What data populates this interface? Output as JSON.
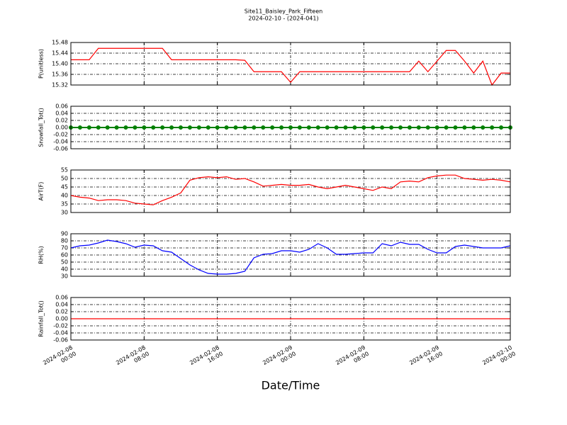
{
  "chart_data": [
    {
      "type": "line",
      "title": "Site11_Baisley_Park_Fifteen",
      "subtitle": "2024-02-10 - (2024-041)",
      "ylabel": "P(unitless)",
      "x": [
        "2024-02-08 00:00",
        "2024-02-08 01:00",
        "2024-02-08 02:00",
        "2024-02-08 03:00",
        "2024-02-08 04:00",
        "2024-02-08 05:00",
        "2024-02-08 06:00",
        "2024-02-08 07:00",
        "2024-02-08 08:00",
        "2024-02-08 09:00",
        "2024-02-08 10:00",
        "2024-02-08 11:00",
        "2024-02-08 12:00",
        "2024-02-08 13:00",
        "2024-02-08 14:00",
        "2024-02-08 15:00",
        "2024-02-08 16:00",
        "2024-02-08 17:00",
        "2024-02-08 18:00",
        "2024-02-08 19:00",
        "2024-02-08 20:00",
        "2024-02-08 21:00",
        "2024-02-08 22:00",
        "2024-02-08 23:00",
        "2024-02-09 00:00",
        "2024-02-09 01:00",
        "2024-02-09 02:00",
        "2024-02-09 03:00",
        "2024-02-09 04:00",
        "2024-02-09 05:00",
        "2024-02-09 06:00",
        "2024-02-09 07:00",
        "2024-02-09 08:00",
        "2024-02-09 09:00",
        "2024-02-09 10:00",
        "2024-02-09 11:00",
        "2024-02-09 12:00",
        "2024-02-09 13:00",
        "2024-02-09 14:00",
        "2024-02-09 15:00",
        "2024-02-09 16:00",
        "2024-02-09 17:00",
        "2024-02-09 18:00",
        "2024-02-09 19:00",
        "2024-02-09 20:00",
        "2024-02-09 21:00",
        "2024-02-09 22:00",
        "2024-02-09 23:00",
        "2024-02-10 00:00"
      ],
      "series": [
        {
          "color": "#ff0000",
          "values": [
            15.415,
            15.415,
            15.415,
            15.458,
            15.458,
            15.458,
            15.458,
            15.458,
            15.458,
            15.458,
            15.458,
            15.415,
            15.415,
            15.415,
            15.415,
            15.415,
            15.415,
            15.415,
            15.415,
            15.413,
            15.37,
            15.37,
            15.37,
            15.37,
            15.33,
            15.37,
            15.37,
            15.37,
            15.37,
            15.37,
            15.37,
            15.37,
            15.37,
            15.37,
            15.37,
            15.37,
            15.37,
            15.37,
            15.41,
            15.37,
            15.41,
            15.45,
            15.45,
            15.41,
            15.365,
            15.41,
            15.32,
            15.365,
            15.365
          ]
        }
      ],
      "xlim": [
        "2024-02-08 00:00",
        "2024-02-10 00:00"
      ],
      "ylim": [
        15.32,
        15.48
      ],
      "yticks": [
        15.32,
        15.36,
        {
          "value": 15.4,
          "label": "15.40"
        },
        15.44,
        15.48
      ],
      "grid": true
    },
    {
      "type": "line",
      "ylabel": "Snowfall_Tot()",
      "marker": true,
      "x": [
        "2024-02-08 00:00",
        "2024-02-08 01:00",
        "2024-02-08 02:00",
        "2024-02-08 03:00",
        "2024-02-08 04:00",
        "2024-02-08 05:00",
        "2024-02-08 06:00",
        "2024-02-08 07:00",
        "2024-02-08 08:00",
        "2024-02-08 09:00",
        "2024-02-08 10:00",
        "2024-02-08 11:00",
        "2024-02-08 12:00",
        "2024-02-08 13:00",
        "2024-02-08 14:00",
        "2024-02-08 15:00",
        "2024-02-08 16:00",
        "2024-02-08 17:00",
        "2024-02-08 18:00",
        "2024-02-08 19:00",
        "2024-02-08 20:00",
        "2024-02-08 21:00",
        "2024-02-08 22:00",
        "2024-02-08 23:00",
        "2024-02-09 00:00",
        "2024-02-09 01:00",
        "2024-02-09 02:00",
        "2024-02-09 03:00",
        "2024-02-09 04:00",
        "2024-02-09 05:00",
        "2024-02-09 06:00",
        "2024-02-09 07:00",
        "2024-02-09 08:00",
        "2024-02-09 09:00",
        "2024-02-09 10:00",
        "2024-02-09 11:00",
        "2024-02-09 12:00",
        "2024-02-09 13:00",
        "2024-02-09 14:00",
        "2024-02-09 15:00",
        "2024-02-09 16:00",
        "2024-02-09 17:00",
        "2024-02-09 18:00",
        "2024-02-09 19:00",
        "2024-02-09 20:00",
        "2024-02-09 21:00",
        "2024-02-09 22:00",
        "2024-02-09 23:00",
        "2024-02-10 00:00"
      ],
      "series": [
        {
          "color": "#008000",
          "values": [
            0,
            0,
            0,
            0,
            0,
            0,
            0,
            0,
            0,
            0,
            0,
            0,
            0,
            0,
            0,
            0,
            0,
            0,
            0,
            0,
            0,
            0,
            0,
            0,
            0,
            0,
            0,
            0,
            0,
            0,
            0,
            0,
            0,
            0,
            0,
            0,
            0,
            0,
            0,
            0,
            0,
            0,
            0,
            0,
            0,
            0,
            0,
            0,
            0
          ]
        }
      ],
      "xlim": [
        "2024-02-08 00:00",
        "2024-02-10 00:00"
      ],
      "ylim": [
        -0.06,
        0.06
      ],
      "yticks": [
        -0.06,
        -0.04,
        -0.02,
        {
          "value": 0,
          "label": "0.00"
        },
        0.02,
        0.04,
        0.06
      ],
      "grid": true
    },
    {
      "type": "line",
      "ylabel": "AirT(F)",
      "x": [
        "2024-02-08 00:00",
        "2024-02-08 01:00",
        "2024-02-08 02:00",
        "2024-02-08 03:00",
        "2024-02-08 04:00",
        "2024-02-08 05:00",
        "2024-02-08 06:00",
        "2024-02-08 07:00",
        "2024-02-08 08:00",
        "2024-02-08 09:00",
        "2024-02-08 10:00",
        "2024-02-08 11:00",
        "2024-02-08 12:00",
        "2024-02-08 13:00",
        "2024-02-08 14:00",
        "2024-02-08 15:00",
        "2024-02-08 16:00",
        "2024-02-08 17:00",
        "2024-02-08 18:00",
        "2024-02-08 19:00",
        "2024-02-08 20:00",
        "2024-02-08 21:00",
        "2024-02-08 22:00",
        "2024-02-08 23:00",
        "2024-02-09 00:00",
        "2024-02-09 01:00",
        "2024-02-09 02:00",
        "2024-02-09 03:00",
        "2024-02-09 04:00",
        "2024-02-09 05:00",
        "2024-02-09 06:00",
        "2024-02-09 07:00",
        "2024-02-09 08:00",
        "2024-02-09 09:00",
        "2024-02-09 10:00",
        "2024-02-09 11:00",
        "2024-02-09 12:00",
        "2024-02-09 13:00",
        "2024-02-09 14:00",
        "2024-02-09 15:00",
        "2024-02-09 16:00",
        "2024-02-09 17:00",
        "2024-02-09 18:00",
        "2024-02-09 19:00",
        "2024-02-09 20:00",
        "2024-02-09 21:00",
        "2024-02-09 22:00",
        "2024-02-09 23:00",
        "2024-02-10 00:00"
      ],
      "series": [
        {
          "color": "#ff0000",
          "values": [
            40,
            39,
            38.5,
            37,
            37.5,
            37.5,
            37,
            35.5,
            35,
            34.5,
            37,
            39,
            41.5,
            49,
            50.5,
            51,
            50.5,
            51,
            49.5,
            50,
            48,
            45.5,
            46,
            46.5,
            46,
            46,
            46.5,
            45,
            44,
            45,
            46,
            45,
            44,
            43,
            45,
            44,
            48,
            48.5,
            48,
            50.5,
            51.5,
            52,
            52,
            50,
            49.5,
            49,
            49.5,
            49,
            48
          ]
        }
      ],
      "xlim": [
        "2024-02-08 00:00",
        "2024-02-10 00:00"
      ],
      "ylim": [
        30,
        55
      ],
      "yticks": [
        30,
        35,
        40,
        45,
        50,
        55
      ],
      "grid": true
    },
    {
      "type": "line",
      "ylabel": "RH(%)",
      "x": [
        "2024-02-08 00:00",
        "2024-02-08 01:00",
        "2024-02-08 02:00",
        "2024-02-08 03:00",
        "2024-02-08 04:00",
        "2024-02-08 05:00",
        "2024-02-08 06:00",
        "2024-02-08 07:00",
        "2024-02-08 08:00",
        "2024-02-08 09:00",
        "2024-02-08 10:00",
        "2024-02-08 11:00",
        "2024-02-08 12:00",
        "2024-02-08 13:00",
        "2024-02-08 14:00",
        "2024-02-08 15:00",
        "2024-02-08 16:00",
        "2024-02-08 17:00",
        "2024-02-08 18:00",
        "2024-02-08 19:00",
        "2024-02-08 20:00",
        "2024-02-08 21:00",
        "2024-02-08 22:00",
        "2024-02-08 23:00",
        "2024-02-09 00:00",
        "2024-02-09 01:00",
        "2024-02-09 02:00",
        "2024-02-09 03:00",
        "2024-02-09 04:00",
        "2024-02-09 05:00",
        "2024-02-09 06:00",
        "2024-02-09 07:00",
        "2024-02-09 08:00",
        "2024-02-09 09:00",
        "2024-02-09 10:00",
        "2024-02-09 11:00",
        "2024-02-09 12:00",
        "2024-02-09 13:00",
        "2024-02-09 14:00",
        "2024-02-09 15:00",
        "2024-02-09 16:00",
        "2024-02-09 17:00",
        "2024-02-09 18:00",
        "2024-02-09 19:00",
        "2024-02-09 20:00",
        "2024-02-09 21:00",
        "2024-02-09 22:00",
        "2024-02-09 23:00",
        "2024-02-10 00:00"
      ],
      "series": [
        {
          "color": "#0000ff",
          "values": [
            70,
            73,
            74,
            77,
            81,
            79,
            76,
            71,
            74,
            73,
            66,
            64,
            55,
            46,
            39,
            34,
            33,
            33,
            34,
            37,
            56,
            61,
            62,
            66,
            66,
            64,
            68,
            76,
            70,
            61,
            61,
            62,
            63,
            63,
            76,
            73,
            78,
            75,
            75,
            68,
            63,
            63,
            72,
            74,
            72,
            70,
            70,
            70,
            73
          ]
        }
      ],
      "xlim": [
        "2024-02-08 00:00",
        "2024-02-10 00:00"
      ],
      "ylim": [
        30,
        90
      ],
      "yticks": [
        30,
        40,
        50,
        60,
        70,
        80,
        90
      ],
      "grid": true
    },
    {
      "type": "line",
      "ylabel": "Rainfall_Tot()",
      "xlabel": "Date/Time",
      "x": [
        "2024-02-08 00:00",
        "2024-02-08 01:00",
        "2024-02-08 02:00",
        "2024-02-08 03:00",
        "2024-02-08 04:00",
        "2024-02-08 05:00",
        "2024-02-08 06:00",
        "2024-02-08 07:00",
        "2024-02-08 08:00",
        "2024-02-08 09:00",
        "2024-02-08 10:00",
        "2024-02-08 11:00",
        "2024-02-08 12:00",
        "2024-02-08 13:00",
        "2024-02-08 14:00",
        "2024-02-08 15:00",
        "2024-02-08 16:00",
        "2024-02-08 17:00",
        "2024-02-08 18:00",
        "2024-02-08 19:00",
        "2024-02-08 20:00",
        "2024-02-08 21:00",
        "2024-02-08 22:00",
        "2024-02-08 23:00",
        "2024-02-09 00:00",
        "2024-02-09 01:00",
        "2024-02-09 02:00",
        "2024-02-09 03:00",
        "2024-02-09 04:00",
        "2024-02-09 05:00",
        "2024-02-09 06:00",
        "2024-02-09 07:00",
        "2024-02-09 08:00",
        "2024-02-09 09:00",
        "2024-02-09 10:00",
        "2024-02-09 11:00",
        "2024-02-09 12:00",
        "2024-02-09 13:00",
        "2024-02-09 14:00",
        "2024-02-09 15:00",
        "2024-02-09 16:00",
        "2024-02-09 17:00",
        "2024-02-09 18:00",
        "2024-02-09 19:00",
        "2024-02-09 20:00",
        "2024-02-09 21:00",
        "2024-02-09 22:00",
        "2024-02-09 23:00",
        "2024-02-10 00:00"
      ],
      "series": [
        {
          "color": "#ff0000",
          "values": [
            0,
            0,
            0,
            0,
            0,
            0,
            0,
            0,
            0,
            0,
            0,
            0,
            0,
            0,
            0,
            0,
            0,
            0,
            0,
            0,
            0,
            0,
            0,
            0,
            0,
            0,
            0,
            0,
            0,
            0,
            0,
            0,
            0,
            0,
            0,
            0,
            0,
            0,
            0,
            0,
            0,
            0,
            0,
            0,
            0,
            0,
            0,
            0,
            0
          ]
        }
      ],
      "xlim": [
        "2024-02-08 00:00",
        "2024-02-10 00:00"
      ],
      "ylim": [
        -0.06,
        0.06
      ],
      "yticks": [
        -0.06,
        -0.04,
        -0.02,
        {
          "value": 0,
          "label": "0.00"
        },
        0.02,
        0.04,
        0.06
      ],
      "grid": true,
      "xticks": [
        {
          "value": "2024-02-08 00:00",
          "label": "2024-02-08\n00:00"
        },
        {
          "value": "2024-02-08 08:00",
          "label": "2024-02-08\n08:00"
        },
        {
          "value": "2024-02-08 16:00",
          "label": "2024-02-08\n16:00"
        },
        {
          "value": "2024-02-09 00:00",
          "label": "2024-02-09\n00:00"
        },
        {
          "value": "2024-02-09 08:00",
          "label": "2024-02-09\n08:00"
        },
        {
          "value": "2024-02-09 16:00",
          "label": "2024-02-09\n16:00"
        },
        {
          "value": "2024-02-10 00:00",
          "label": "2024-02-10\n00:00"
        }
      ]
    }
  ]
}
